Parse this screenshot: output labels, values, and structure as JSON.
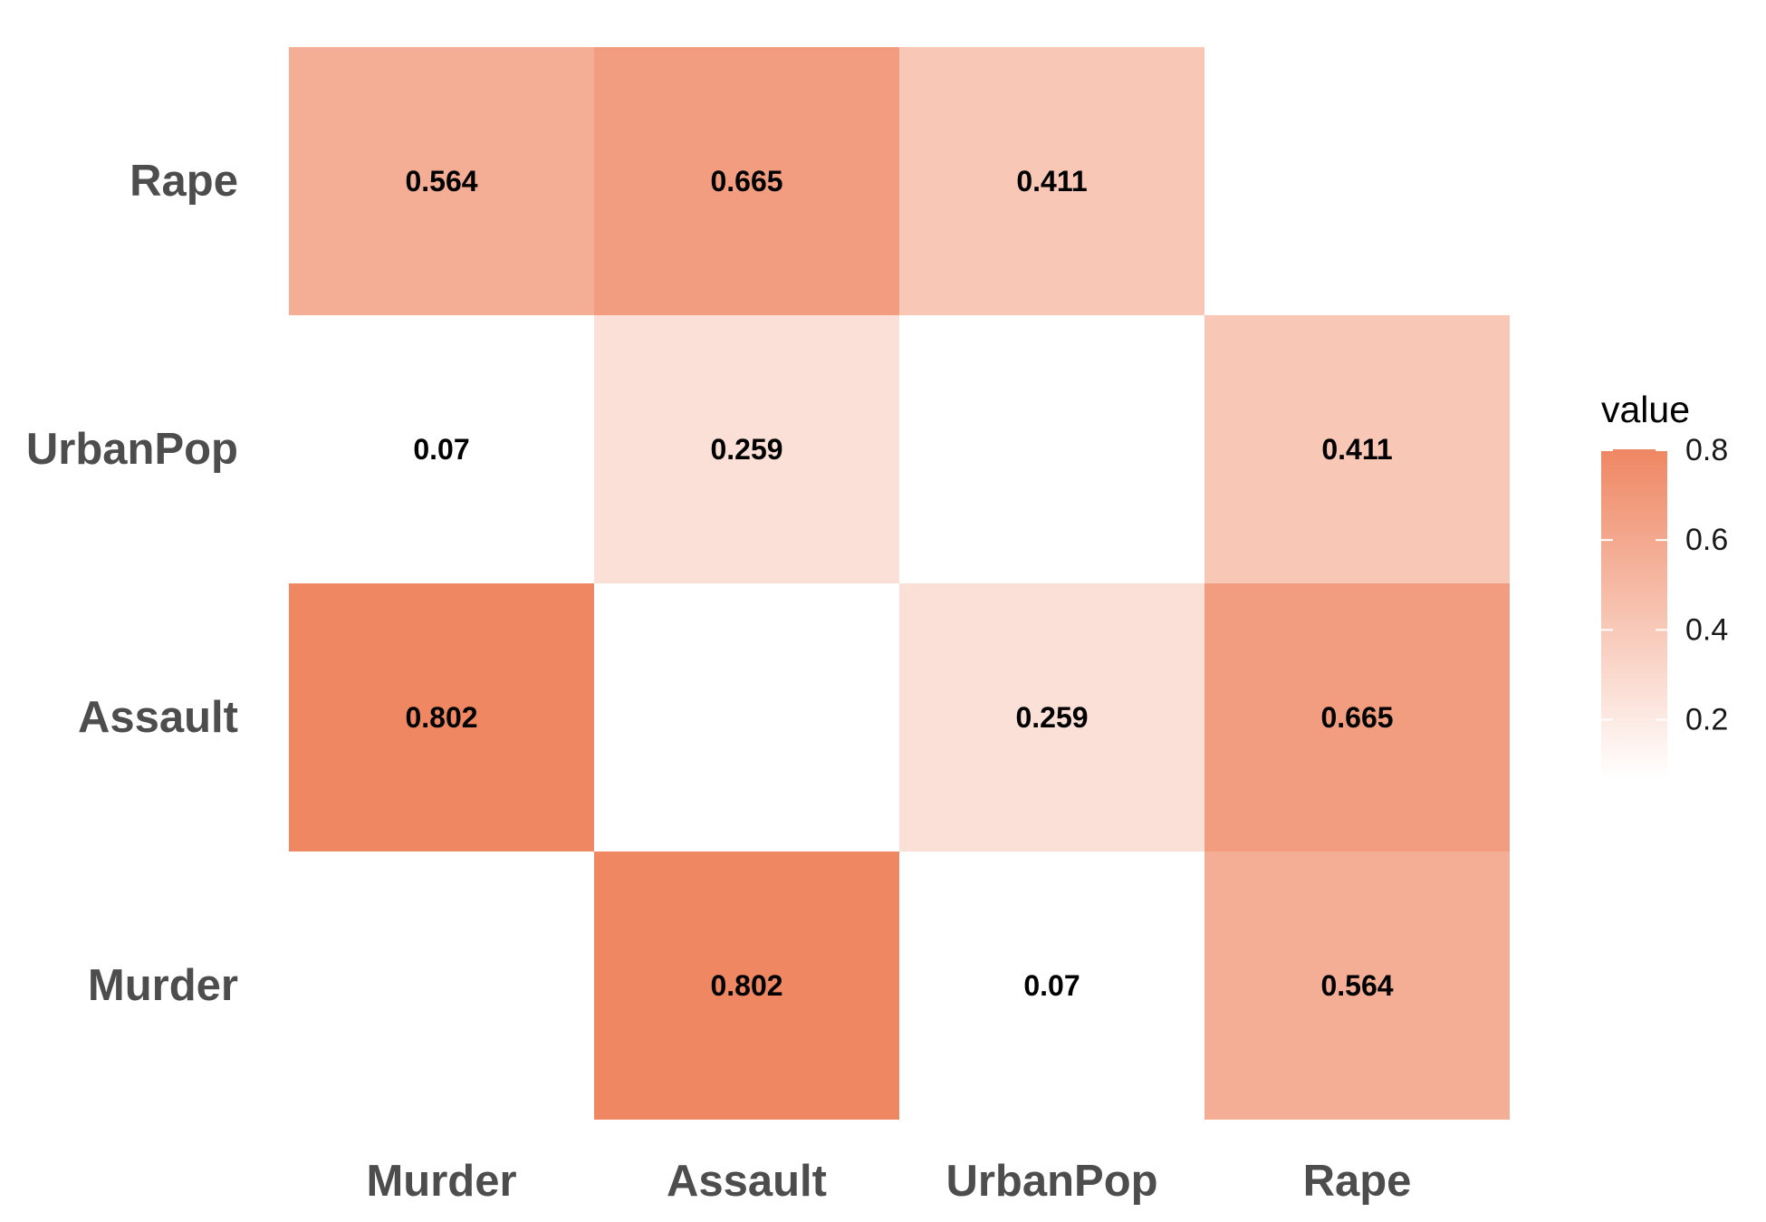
{
  "chart_data": {
    "type": "heatmap",
    "x_categories": [
      "Murder",
      "Assault",
      "UrbanPop",
      "Rape"
    ],
    "y_categories": [
      "Murder",
      "Assault",
      "UrbanPop",
      "Rape"
    ],
    "cells": [
      {
        "x": "Murder",
        "y": "Rape",
        "value": 0.564,
        "label": "0.564"
      },
      {
        "x": "Assault",
        "y": "Rape",
        "value": 0.665,
        "label": "0.665"
      },
      {
        "x": "UrbanPop",
        "y": "Rape",
        "value": 0.411,
        "label": "0.411"
      },
      {
        "x": "Murder",
        "y": "UrbanPop",
        "value": 0.07,
        "label": "0.07"
      },
      {
        "x": "Assault",
        "y": "UrbanPop",
        "value": 0.259,
        "label": "0.259"
      },
      {
        "x": "Rape",
        "y": "UrbanPop",
        "value": 0.411,
        "label": "0.411"
      },
      {
        "x": "Murder",
        "y": "Assault",
        "value": 0.802,
        "label": "0.802"
      },
      {
        "x": "UrbanPop",
        "y": "Assault",
        "value": 0.259,
        "label": "0.259"
      },
      {
        "x": "Rape",
        "y": "Assault",
        "value": 0.665,
        "label": "0.665"
      },
      {
        "x": "Assault",
        "y": "Murder",
        "value": 0.802,
        "label": "0.802"
      },
      {
        "x": "UrbanPop",
        "y": "Murder",
        "value": 0.07,
        "label": "0.07"
      },
      {
        "x": "Rape",
        "y": "Murder",
        "value": 0.564,
        "label": "0.564"
      }
    ],
    "legend": {
      "title": "value",
      "ticks": [
        {
          "value": 0.8,
          "label": "0.8"
        },
        {
          "value": 0.6,
          "label": "0.6"
        },
        {
          "value": 0.4,
          "label": "0.4"
        },
        {
          "value": 0.2,
          "label": "0.2"
        }
      ],
      "range": [
        0.07,
        0.802
      ],
      "placement": "right"
    },
    "colors": {
      "low": "#ffffff",
      "high": "#ef8763"
    },
    "grid": false
  }
}
